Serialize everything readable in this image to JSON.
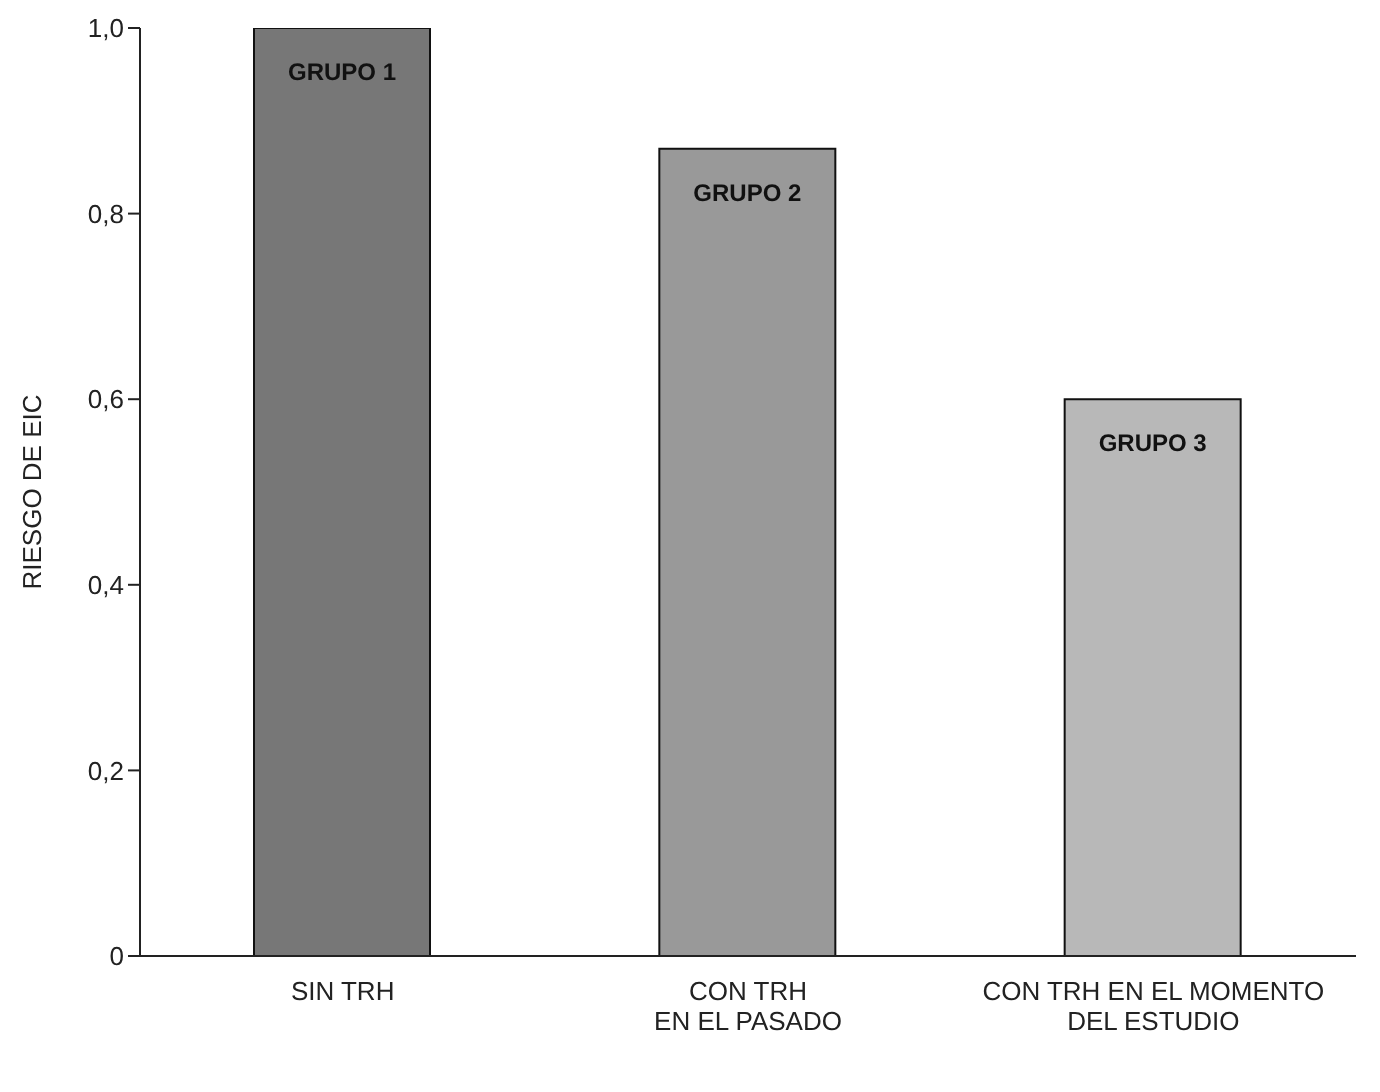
{
  "chart_data": {
    "type": "bar",
    "ylabel": "RIESGO DE EIC",
    "categories": [
      "SIN TRH",
      "CON TRH\nEN EL PASADO",
      "CON TRH EN EL MOMENTO\nDEL ESTUDIO"
    ],
    "values": [
      1.0,
      0.87,
      0.6
    ],
    "colors": [
      "#777777",
      "#999999",
      "#b8b8b8"
    ],
    "ylim": [
      0,
      1.0
    ],
    "yticks": [
      0,
      {
        "value": 0.2,
        "label": "0,2"
      },
      {
        "value": 0.4,
        "label": "0,4"
      },
      {
        "value": 0.6,
        "label": "0,6"
      },
      {
        "value": 0.8,
        "label": "0,8"
      },
      {
        "value": 1.0,
        "label": "1,0"
      }
    ],
    "annotations": [
      "GRUPO 1",
      "GRUPO 2",
      "GRUPO 3"
    ],
    "grid": false,
    "legend": false
  }
}
